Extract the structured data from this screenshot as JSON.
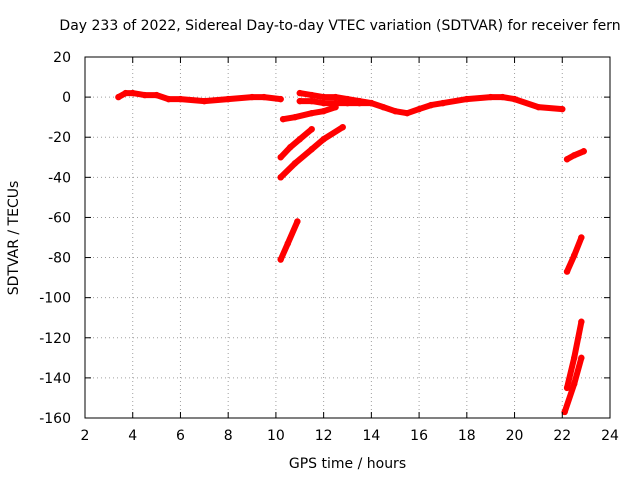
{
  "chart_data": {
    "type": "scatter",
    "title": "Day 233 of 2022, Sidereal Day-to-day VTEC variation (SDTVAR) for receiver fern",
    "xlabel": "GPS time / hours",
    "ylabel": "SDTVAR / TECUs",
    "xlim": [
      2,
      24
    ],
    "ylim": [
      -160,
      20
    ],
    "xticks": [
      "2",
      "4",
      "6",
      "8",
      "10",
      "12",
      "14",
      "16",
      "18",
      "20",
      "22",
      "24"
    ],
    "yticks": [
      "20",
      "0",
      "-20",
      "-40",
      "-60",
      "-80",
      "-100",
      "-120",
      "-140",
      "-160"
    ],
    "grid": true,
    "color": "#ff0000",
    "series": [
      {
        "x": [
          3.4,
          3.7,
          4.0,
          4.5,
          5.0,
          5.5,
          6.0,
          7.0,
          8.0,
          9.0,
          9.5,
          10.2
        ],
        "y": [
          0,
          2,
          2,
          1,
          1,
          -1,
          -1,
          -2,
          -1,
          0,
          0,
          -1
        ]
      },
      {
        "x": [
          10.3,
          10.8,
          11.5,
          12.0,
          12.5
        ],
        "y": [
          -11,
          -10,
          -8,
          -7,
          -5
        ]
      },
      {
        "x": [
          11.0,
          11.5,
          12.0,
          12.5,
          13.0,
          13.5,
          14.0,
          14.5,
          15.0,
          15.5,
          16.0,
          16.5,
          17.0,
          18.0,
          19.0,
          19.5,
          20.0,
          21.0,
          22.0
        ],
        "y": [
          2,
          1,
          0,
          0,
          -1,
          -2,
          -3,
          -5,
          -7,
          -8,
          -6,
          -4,
          -3,
          -1,
          0,
          0,
          -1,
          -5,
          -6
        ]
      },
      {
        "x": [
          11.0,
          11.5,
          12.0,
          12.5,
          13.0,
          13.5,
          14.0
        ],
        "y": [
          -2,
          -2,
          -3,
          -3,
          -3,
          -3,
          -3
        ]
      },
      {
        "x": [
          10.2,
          10.6,
          11.0,
          11.5
        ],
        "y": [
          -30,
          -25,
          -21,
          -16
        ]
      },
      {
        "x": [
          10.2,
          10.8,
          11.5,
          12.0,
          12.8
        ],
        "y": [
          -40,
          -33,
          -26,
          -21,
          -15
        ]
      },
      {
        "x": [
          10.2,
          10.5,
          10.9
        ],
        "y": [
          -81,
          -73,
          -62
        ]
      },
      {
        "x": [
          22.2,
          22.5,
          22.9
        ],
        "y": [
          -31,
          -29,
          -27
        ]
      },
      {
        "x": [
          22.2,
          22.5,
          22.8
        ],
        "y": [
          -87,
          -79,
          -70
        ]
      },
      {
        "x": [
          22.2,
          22.5,
          22.8
        ],
        "y": [
          -145,
          -130,
          -112
        ]
      },
      {
        "x": [
          22.1,
          22.5,
          22.8
        ],
        "y": [
          -157,
          -143,
          -130
        ]
      }
    ]
  }
}
